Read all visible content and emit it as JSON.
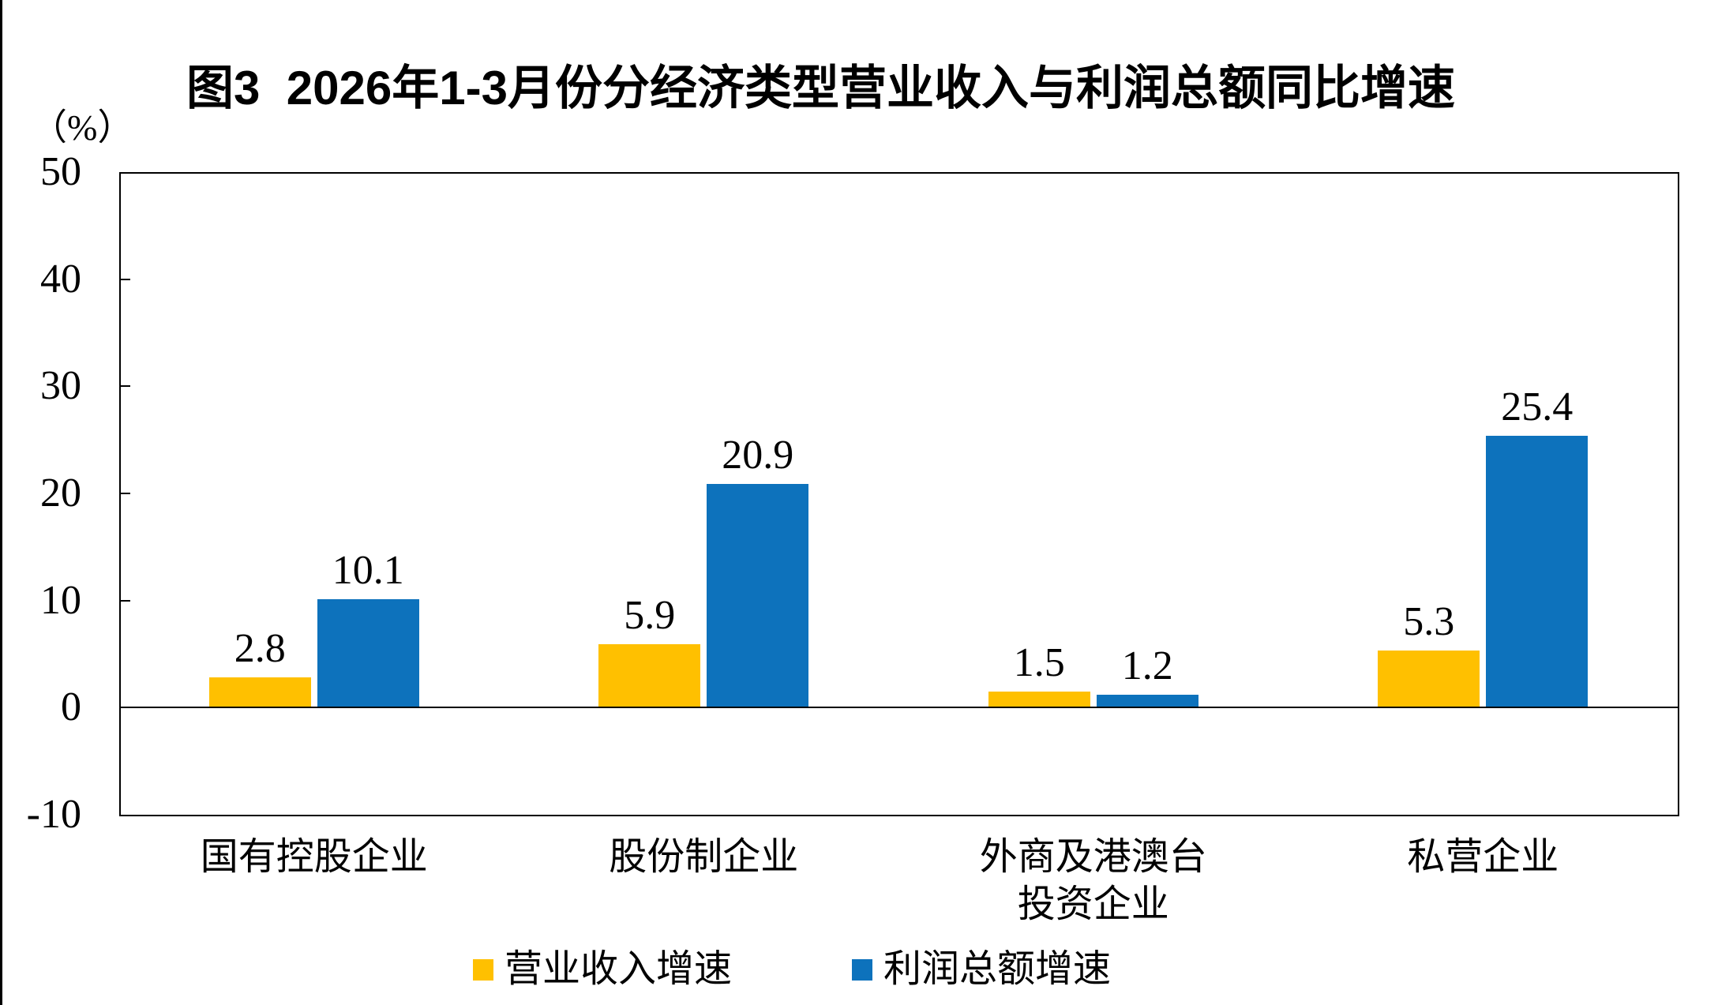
{
  "chart_data": {
    "type": "bar",
    "title": "图3  2026年1-3月份分经济类型营业收入与利润总额同比增速",
    "unit_label": "（%）",
    "categories": [
      "国有控股企业",
      "股份制企业",
      "外商及港澳台\n投资企业",
      "私营企业"
    ],
    "series": [
      {
        "name": "营业收入增速",
        "color": "#FFC000",
        "values": [
          2.8,
          5.9,
          1.5,
          5.3
        ]
      },
      {
        "name": "利润总额增速",
        "color": "#0D72BC",
        "values": [
          10.1,
          20.9,
          1.2,
          25.4
        ]
      }
    ],
    "ylim": [
      -10,
      50
    ],
    "yticks": [
      50,
      40,
      30,
      20,
      10,
      0,
      -10
    ],
    "grid": false,
    "value_labels": true,
    "value_label_decimals": 1,
    "legend_position": "bottom"
  }
}
